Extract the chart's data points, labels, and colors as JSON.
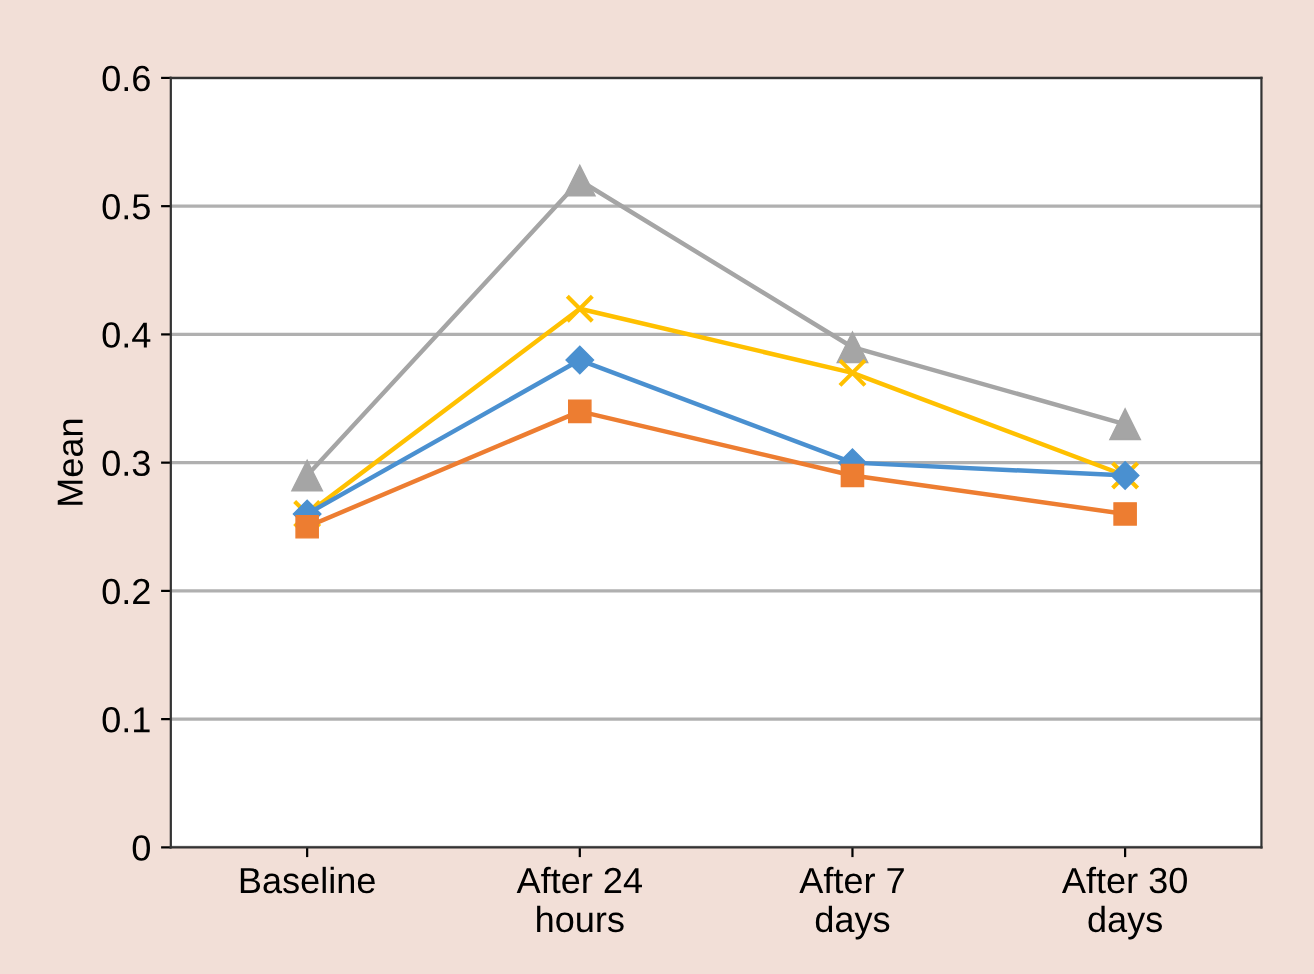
{
  "chart_data": {
    "type": "line",
    "ylabel": "Mean",
    "categories": [
      "Baseline",
      "After 24\nhours",
      "After 7\ndays",
      "After 30\ndays"
    ],
    "series": [
      {
        "color": "#a5a5a5",
        "marker": "triangle",
        "values": [
          0.29,
          0.52,
          0.39,
          0.33
        ]
      },
      {
        "color": "#ffc000",
        "marker": "cross",
        "values": [
          0.26,
          0.42,
          0.37,
          0.29
        ]
      },
      {
        "color": "#4a90d0",
        "marker": "diamond",
        "values": [
          0.26,
          0.38,
          0.3,
          0.29
        ]
      },
      {
        "color": "#ed7d31",
        "marker": "square",
        "values": [
          0.25,
          0.34,
          0.29,
          0.26
        ]
      }
    ],
    "ylim": [
      0,
      0.6
    ],
    "yticks": [
      0,
      0.1,
      0.2,
      0.3,
      0.4,
      0.5,
      0.6
    ],
    "grid": "y",
    "legend": false
  }
}
